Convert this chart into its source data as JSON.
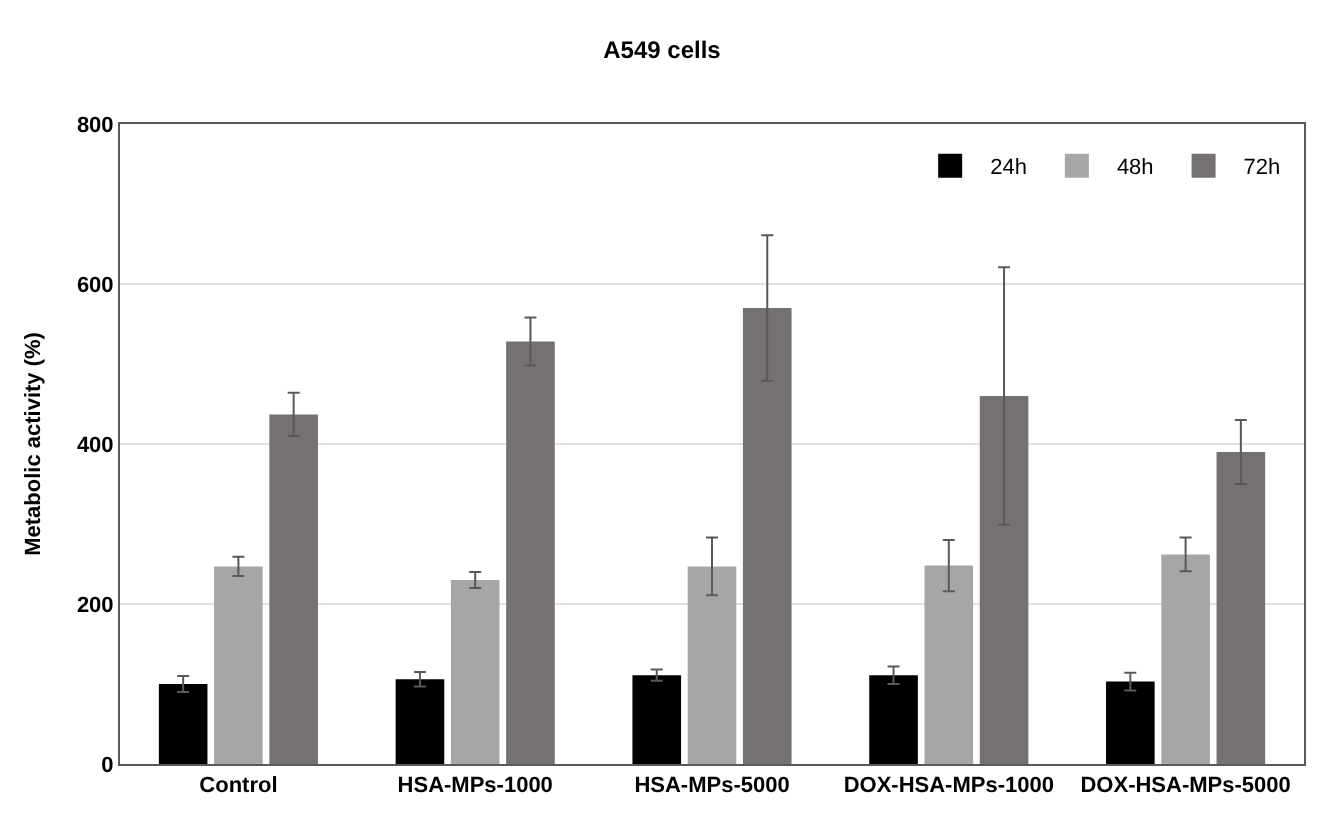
{
  "chart_data": {
    "type": "bar",
    "title": "A549 cells",
    "ylabel": "Metabolic activity (%)",
    "categories": [
      "Control",
      "HSA-MPs-1000",
      "HSA-MPs-5000",
      "DOX-HSA-MPs-1000",
      "DOX-HSA-MPs-5000"
    ],
    "series": [
      {
        "name": "24h",
        "color": "#000000",
        "values": [
          100,
          106,
          111,
          111,
          103
        ],
        "errors": [
          10,
          9,
          7,
          11,
          11
        ]
      },
      {
        "name": "48h",
        "color": "#a6a6a6",
        "values": [
          247,
          230,
          247,
          248,
          262
        ],
        "errors": [
          12,
          10,
          36,
          32,
          21
        ]
      },
      {
        "name": "72h",
        "color": "#767171",
        "values": [
          437,
          528,
          570,
          460,
          390
        ],
        "errors": [
          27,
          30,
          91,
          161,
          40
        ]
      }
    ],
    "ylim": [
      0,
      800
    ],
    "yticks": [
      0,
      200,
      400,
      600,
      800
    ],
    "grid": "y",
    "legend": "top right"
  }
}
